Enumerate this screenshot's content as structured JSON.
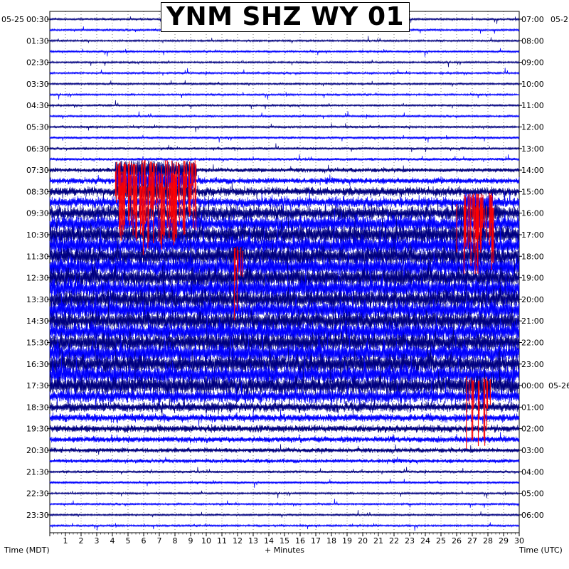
{
  "chart_data": {
    "type": "helicorder",
    "title": "YNM SHZ WY 01",
    "xlabel": "+ Minutes",
    "left_axis_label": "Time (MDT)",
    "right_axis_label": "Time (UTC)",
    "left_date_label": "05-25",
    "right_date_label_top": "05-2",
    "right_date_label_day_change": "05-26",
    "x_ticks": [
      1,
      2,
      3,
      4,
      5,
      6,
      7,
      8,
      9,
      10,
      11,
      12,
      13,
      14,
      15,
      16,
      17,
      18,
      19,
      20,
      21,
      22,
      23,
      24,
      25,
      26,
      27,
      28,
      29,
      30
    ],
    "xlim": [
      0,
      30
    ],
    "left_tick_labels": [
      "00:30",
      "01:30",
      "02:30",
      "03:30",
      "04:30",
      "05:30",
      "06:30",
      "07:30",
      "08:30",
      "09:30",
      "10:30",
      "11:30",
      "12:30",
      "13:30",
      "14:30",
      "15:30",
      "16:30",
      "17:30",
      "18:30",
      "19:30",
      "20:30",
      "21:30",
      "22:30",
      "23:30"
    ],
    "right_tick_labels": [
      "07:00",
      "08:00",
      "09:00",
      "10:00",
      "11:00",
      "12:00",
      "13:00",
      "14:00",
      "15:00",
      "16:00",
      "17:00",
      "18:00",
      "19:00",
      "20:00",
      "21:00",
      "22:00",
      "23:00",
      "00:00",
      "01:00",
      "02:00",
      "03:00",
      "04:00",
      "05:00",
      "06:00"
    ],
    "traces_per_hour": 2,
    "trace_count": 48,
    "trace_colors": [
      "#000080",
      "#0000ff"
    ],
    "clip_color": "#ff0000",
    "grid": true,
    "activity_by_trace": [
      0.06,
      0.06,
      0.06,
      0.06,
      0.06,
      0.06,
      0.06,
      0.06,
      0.06,
      0.06,
      0.08,
      0.08,
      0.1,
      0.12,
      0.2,
      0.3,
      0.45,
      0.55,
      0.75,
      0.9,
      1.0,
      1.0,
      1.0,
      1.0,
      1.0,
      1.0,
      1.0,
      1.0,
      1.0,
      1.0,
      1.0,
      1.0,
      1.0,
      1.0,
      0.95,
      0.7,
      0.5,
      0.4,
      0.35,
      0.3,
      0.22,
      0.18,
      0.1,
      0.08,
      0.06,
      0.06,
      0.06,
      0.06
    ],
    "bursts": [
      {
        "trace": 14,
        "start_min": 4.2,
        "end_min": 9.4,
        "clipped": true
      },
      {
        "trace": 15,
        "start_min": 4.2,
        "end_min": 9.2,
        "clipped": true
      },
      {
        "trace": 16,
        "start_min": 4.2,
        "end_min": 9.0,
        "clipped": true
      },
      {
        "trace": 17,
        "start_min": 26.5,
        "end_min": 28.3,
        "clipped": true
      },
      {
        "trace": 18,
        "start_min": 26.0,
        "end_min": 28.5,
        "clipped": true
      },
      {
        "trace": 22,
        "start_min": 11.5,
        "end_min": 12.5,
        "clipped": true
      },
      {
        "trace": 34,
        "start_min": 26.5,
        "end_min": 28.2,
        "clipped": true
      }
    ]
  }
}
